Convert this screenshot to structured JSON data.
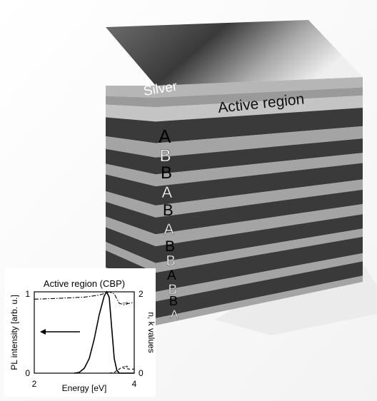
{
  "diagram": {
    "top_label": "Silver",
    "active_label": "Active region",
    "side_letters": [
      "A",
      "B",
      "B",
      "A",
      "B",
      "A",
      "B",
      "B",
      "A",
      "B",
      "B",
      "A"
    ]
  },
  "inset_chart": {
    "title": "Active region (CBP)",
    "ylabel_left": "PL intensity [arb. u.]",
    "ylabel_right": "n, k values",
    "xlabel": "Energy [eV]",
    "x_ticks": [
      "2",
      "4"
    ],
    "y_left_ticks": [
      "0",
      "1"
    ],
    "y_right_ticks": [
      "0",
      "2"
    ],
    "arrow_right_top": "→",
    "arrow_right_bottom": "→"
  },
  "chart_data": {
    "type": "line",
    "title": "Active region (CBP)",
    "xlabel": "Energy [eV]",
    "ylabel": "PL intensity [arb. u.]",
    "xlim": [
      2,
      4
    ],
    "ylim": [
      0,
      1
    ],
    "y2label": "n, k values",
    "y2lim": [
      0,
      2
    ],
    "series": [
      {
        "style": "solid",
        "axis": "left",
        "x": [
          2.8,
          2.9,
          3.0,
          3.1,
          3.2,
          3.3,
          3.4,
          3.45,
          3.5,
          3.55,
          3.6,
          3.65,
          3.7,
          3.8,
          4.0
        ],
        "y": [
          0.0,
          0.01,
          0.06,
          0.18,
          0.42,
          0.72,
          0.95,
          1.0,
          0.93,
          0.55,
          0.18,
          0.04,
          0.0,
          0.0,
          0.0
        ]
      },
      {
        "style": "dash-dot",
        "axis": "right",
        "x": [
          2.0,
          2.5,
          3.0,
          3.3,
          3.5,
          3.6,
          3.7,
          3.8,
          3.9,
          4.0
        ],
        "y": [
          1.82,
          1.84,
          1.87,
          1.92,
          2.0,
          1.95,
          1.72,
          1.68,
          1.72,
          1.74
        ]
      },
      {
        "style": "dashed",
        "axis": "right",
        "x": [
          3.5,
          3.6,
          3.7,
          3.75,
          3.8,
          3.9,
          4.0
        ],
        "y": [
          0.0,
          0.02,
          0.1,
          0.15,
          0.12,
          0.1,
          0.1
        ]
      }
    ]
  }
}
